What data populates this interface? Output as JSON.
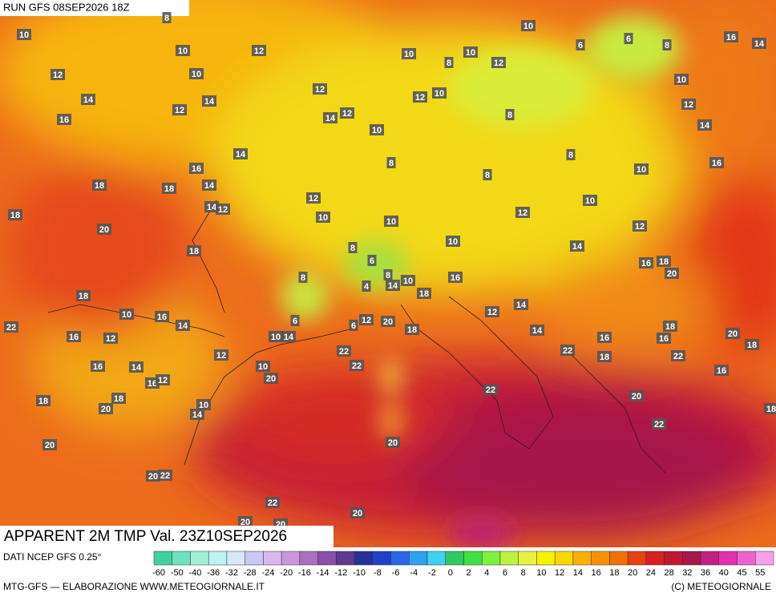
{
  "header": {
    "run": "RUN GFS 08SEP2026 18Z"
  },
  "map": {
    "title": "APPARENT 2M TMP Val. 23Z10SEP2026",
    "labels": [
      10,
      8,
      10,
      12,
      12,
      10,
      14,
      12,
      14,
      12,
      16,
      14,
      12,
      14,
      16,
      18,
      18,
      14,
      14,
      12,
      18,
      20,
      18,
      10,
      8,
      10,
      12,
      10,
      6,
      6,
      8,
      16,
      14,
      10,
      12,
      14,
      12,
      10,
      10,
      8,
      8,
      8,
      8,
      10,
      16,
      12,
      10,
      10,
      12,
      10,
      12,
      14,
      10,
      8,
      6,
      8,
      8,
      4,
      14,
      10,
      16,
      18,
      20,
      18,
      16,
      18,
      10,
      16,
      14,
      22,
      16,
      12,
      6,
      10,
      14,
      6,
      12,
      20,
      18,
      12,
      14,
      14,
      22,
      16,
      18,
      16,
      20,
      18,
      18,
      22,
      22,
      12,
      22,
      10,
      20,
      16,
      14,
      16,
      12,
      16,
      18,
      18,
      20,
      10,
      14,
      22,
      20,
      18,
      22,
      20,
      20,
      20,
      22,
      22,
      20,
      20,
      20
    ]
  },
  "legend": {
    "source": "DATI NCEP GFS 0.25°",
    "ticks": [
      -60,
      -50,
      -40,
      -36,
      -32,
      -28,
      -24,
      -20,
      -16,
      -14,
      -12,
      -10,
      -8,
      -6,
      -4,
      -2,
      0,
      2,
      4,
      6,
      8,
      10,
      12,
      14,
      16,
      18,
      20,
      24,
      28,
      32,
      36,
      40,
      45,
      55
    ],
    "colors": [
      "#40d0a0",
      "#70e0c0",
      "#a0f0d8",
      "#c0f0f0",
      "#d8e8f8",
      "#c8c8f0",
      "#d8b8e8",
      "#c898d8",
      "#a870c0",
      "#8850a8",
      "#603890",
      "#283098",
      "#2040c8",
      "#2868e8",
      "#30a0f0",
      "#40d0f0",
      "#30c860",
      "#40e040",
      "#80f040",
      "#c0f040",
      "#e8f040",
      "#f8f000",
      "#f8d800",
      "#f8b000",
      "#f89000",
      "#f07000",
      "#e84010",
      "#d82020",
      "#c01830",
      "#a81848",
      "#c02080",
      "#e030b0",
      "#f060d0",
      "#f8a0e8"
    ]
  },
  "footer": {
    "left": "MTG-GFS — ELABORAZIONE WWW.METEOGIORNALE.IT",
    "right": "(C) METEOGIORNALE"
  }
}
